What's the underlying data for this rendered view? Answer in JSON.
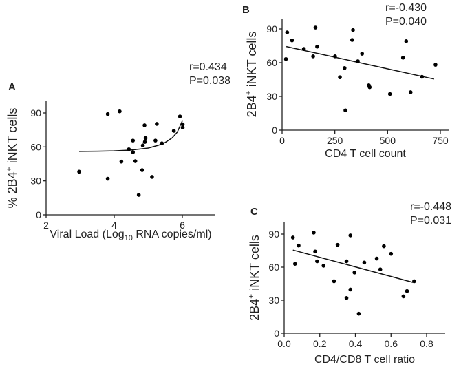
{
  "chart_data": [
    {
      "type": "scatter",
      "panel_label": "A",
      "stats": {
        "r": "r=0.434",
        "p": "P=0.038"
      },
      "xlabel_main": "Viral Load (Log",
      "xlabel_sub": "10",
      "xlabel_tail": " RNA copies/ml)",
      "ylabel_main": "% 2B4",
      "ylabel_sup": "+",
      "ylabel_tail": " iNKT cells",
      "xlim": [
        2,
        7
      ],
      "ylim": [
        0,
        100
      ],
      "xticks": [
        2,
        4,
        6
      ],
      "xtick_labels": [
        "2",
        "4",
        "6"
      ],
      "yticks": [
        0,
        30,
        60,
        90
      ],
      "ytick_labels": [
        "0",
        "30",
        "60",
        "90"
      ],
      "points": [
        [
          2.97,
          38.1
        ],
        [
          3.81,
          89
        ],
        [
          3.81,
          31.9
        ],
        [
          4.16,
          91.4
        ],
        [
          4.21,
          47
        ],
        [
          4.43,
          57.9
        ],
        [
          4.55,
          65.6
        ],
        [
          4.55,
          55.3
        ],
        [
          4.62,
          47.4
        ],
        [
          4.72,
          17.6
        ],
        [
          4.82,
          39.5
        ],
        [
          4.84,
          61.3
        ],
        [
          4.89,
          79.1
        ],
        [
          4.9,
          64.4
        ],
        [
          4.92,
          67.8
        ],
        [
          5.11,
          33.5
        ],
        [
          5.21,
          65.6
        ],
        [
          5.25,
          80.3
        ],
        [
          5.4,
          63.1
        ],
        [
          5.75,
          74.2
        ],
        [
          5.93,
          86.9
        ],
        [
          6.01,
          79.9
        ],
        [
          6.01,
          77.1
        ]
      ],
      "fit": {
        "type": "curve",
        "points": [
          [
            2.97,
            56
          ],
          [
            3.5,
            56.2
          ],
          [
            4,
            56.5
          ],
          [
            4.5,
            57.2
          ],
          [
            5,
            59
          ],
          [
            5.3,
            61.5
          ],
          [
            5.5,
            64
          ],
          [
            5.7,
            68
          ],
          [
            5.85,
            73
          ],
          [
            6,
            83
          ]
        ]
      }
    },
    {
      "type": "scatter",
      "panel_label": "B",
      "stats": {
        "r": "r=-0.430",
        "p": "P=0.040"
      },
      "xlabel_main": "CD4 T cell count",
      "ylabel_main": "2B4",
      "ylabel_sup": "+",
      "ylabel_tail": " iNKT cells",
      "xlim": [
        0,
        800
      ],
      "ylim": [
        0,
        100
      ],
      "xticks": [
        0,
        250,
        500,
        750
      ],
      "xtick_labels": [
        "0",
        "250",
        "500",
        "750"
      ],
      "yticks": [
        0,
        30,
        60,
        90
      ],
      "ytick_labels": [
        "0",
        "30",
        "60",
        "90"
      ],
      "points": [
        [
          18,
          63.2
        ],
        [
          24,
          86.9
        ],
        [
          47,
          79.8
        ],
        [
          103,
          72.2
        ],
        [
          147,
          65.6
        ],
        [
          158,
          91.2
        ],
        [
          166,
          74.2
        ],
        [
          251,
          65.6
        ],
        [
          274,
          47
        ],
        [
          296,
          55.2
        ],
        [
          300,
          17.6
        ],
        [
          332,
          80.2
        ],
        [
          336,
          89
        ],
        [
          359,
          61.3
        ],
        [
          379,
          67.9
        ],
        [
          411,
          39.9
        ],
        [
          415,
          38.2
        ],
        [
          511,
          32.1
        ],
        [
          573,
          64.4
        ],
        [
          588,
          79.1
        ],
        [
          609,
          33.7
        ],
        [
          663,
          47.4
        ],
        [
          727,
          58.1
        ]
      ],
      "fit": {
        "type": "line",
        "points": [
          [
            20,
            74.3
          ],
          [
            720,
            45.4
          ]
        ]
      }
    },
    {
      "type": "scatter",
      "panel_label": "C",
      "stats": {
        "r": "r=-0.448",
        "p": "P=0.031"
      },
      "xlabel_main": "CD4/CD8 T cell ratio",
      "ylabel_main": "2B4",
      "ylabel_sup": "+",
      "ylabel_tail": " iNKT cells",
      "xlim": [
        0,
        0.9
      ],
      "ylim": [
        0,
        100
      ],
      "xticks": [
        0,
        0.2,
        0.4,
        0.6,
        0.8
      ],
      "xtick_labels": [
        "0.0",
        "0.2",
        "0.4",
        "0.6",
        "0.8"
      ],
      "yticks": [
        0,
        30,
        60,
        90
      ],
      "ytick_labels": [
        "0",
        "30",
        "60",
        "90"
      ],
      "points": [
        [
          0.049,
          86.9
        ],
        [
          0.061,
          63
        ],
        [
          0.081,
          79.6
        ],
        [
          0.166,
          91.3
        ],
        [
          0.174,
          74.2
        ],
        [
          0.185,
          65.3
        ],
        [
          0.221,
          61.3
        ],
        [
          0.28,
          47.2
        ],
        [
          0.3,
          80.2
        ],
        [
          0.35,
          65.3
        ],
        [
          0.35,
          32
        ],
        [
          0.372,
          88.8
        ],
        [
          0.372,
          39.7
        ],
        [
          0.395,
          55.1
        ],
        [
          0.419,
          17.7
        ],
        [
          0.45,
          64.2
        ],
        [
          0.52,
          67.8
        ],
        [
          0.54,
          58
        ],
        [
          0.56,
          79
        ],
        [
          0.6,
          72.1
        ],
        [
          0.67,
          33.5
        ],
        [
          0.69,
          38.3
        ],
        [
          0.73,
          47.2
        ]
      ],
      "fit": {
        "type": "line",
        "points": [
          [
            0.049,
            75.5
          ],
          [
            0.723,
            46.2
          ]
        ]
      }
    }
  ]
}
